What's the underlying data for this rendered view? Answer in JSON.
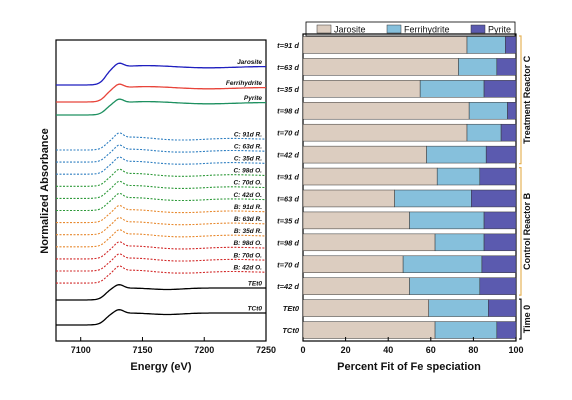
{
  "chart_data": [
    {
      "type": "line",
      "xlabel": "Energy (eV)",
      "ylabel": "Normalized Absorbance",
      "xlim": [
        7080,
        7250
      ],
      "xticks": [
        7100,
        7150,
        7200,
        7250
      ],
      "edge_energy": 7120,
      "white_line_energy": 7131,
      "series": [
        {
          "name": "Jarosite",
          "color": "#1f1fbf",
          "dash": false,
          "kind": "ref"
        },
        {
          "name": "Ferrihydrite",
          "color": "#e8443a",
          "dash": false,
          "kind": "ref"
        },
        {
          "name": "Pyrite",
          "color": "#1e9060",
          "dash": false,
          "kind": "ref"
        },
        {
          "name": "C: 91d R.",
          "color": "#2f7fc1",
          "dash": true,
          "kind": "sample"
        },
        {
          "name": "C: 63d R.",
          "color": "#2f7fc1",
          "dash": true,
          "kind": "sample"
        },
        {
          "name": "C: 35d R.",
          "color": "#2f7fc1",
          "dash": true,
          "kind": "sample"
        },
        {
          "name": "C: 98d O.",
          "color": "#2e9a3a",
          "dash": true,
          "kind": "sample"
        },
        {
          "name": "C: 70d O.",
          "color": "#2e9a3a",
          "dash": true,
          "kind": "sample"
        },
        {
          "name": "C: 42d O.",
          "color": "#2e9a3a",
          "dash": true,
          "kind": "sample"
        },
        {
          "name": "B: 91d R.",
          "color": "#e88a30",
          "dash": true,
          "kind": "sample"
        },
        {
          "name": "B: 63d R.",
          "color": "#e88a30",
          "dash": true,
          "kind": "sample"
        },
        {
          "name": "B: 35d R.",
          "color": "#e88a30",
          "dash": true,
          "kind": "sample"
        },
        {
          "name": "B: 98d O.",
          "color": "#d22a2a",
          "dash": true,
          "kind": "sample"
        },
        {
          "name": "B: 70d O.",
          "color": "#d22a2a",
          "dash": true,
          "kind": "sample"
        },
        {
          "name": "B: 42d O.",
          "color": "#d22a2a",
          "dash": true,
          "kind": "sample"
        },
        {
          "name": "TEt0",
          "color": "#000000",
          "dash": false,
          "kind": "t0"
        },
        {
          "name": "TCt0",
          "color": "#000000",
          "dash": false,
          "kind": "t0"
        }
      ]
    },
    {
      "type": "bar",
      "orientation": "horizontal",
      "stacked": true,
      "xlabel": "Percent Fit of Fe speciation",
      "xlim": [
        0,
        100
      ],
      "xticks": [
        0,
        20,
        40,
        60,
        80,
        100
      ],
      "legend_position": "top",
      "categories": [
        "t=91 d",
        "t=63 d",
        "t=35 d",
        "t=98 d",
        "t=70 d",
        "t=42 d",
        "t=91 d",
        "t=63 d",
        "t=35 d",
        "t=98 d",
        "t=70 d",
        "t=42 d",
        "TEt0",
        "TCt0"
      ],
      "series": [
        {
          "name": "Jarosite",
          "color": "#dccdc0",
          "values": [
            77,
            73,
            55,
            78,
            77,
            58,
            63,
            43,
            50,
            62,
            47,
            50,
            59,
            62
          ]
        },
        {
          "name": "Ferrihydrite",
          "color": "#86c0dc",
          "values": [
            18,
            18,
            30,
            18,
            16,
            28,
            20,
            36,
            35,
            23,
            37,
            33,
            28,
            29
          ]
        },
        {
          "name": "Pyrite",
          "color": "#5b5aaf",
          "values": [
            5,
            9,
            15,
            4,
            7,
            14,
            17,
            21,
            15,
            15,
            16,
            17,
            13,
            9
          ]
        }
      ],
      "groups": [
        {
          "label": "Treatment Reactor C",
          "start": 0,
          "end": 5,
          "bracket_color": "#e6b45a"
        },
        {
          "label": "Control Reactor B",
          "start": 6,
          "end": 11,
          "bracket_color": "#e6b45a"
        },
        {
          "label": "Time 0",
          "start": 12,
          "end": 13,
          "bracket_color": "#111111"
        }
      ]
    }
  ]
}
